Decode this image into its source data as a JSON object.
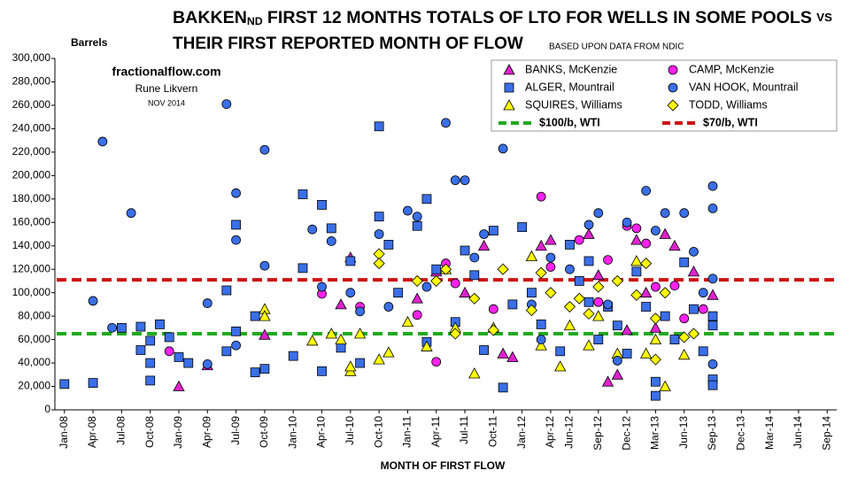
{
  "chart_data": {
    "type": "scatter",
    "title": [
      "BAKKEN",
      "ND",
      "FIRST 12 MONTHS TOTALS OF LTO FOR WELLS IN SOME POOLS",
      "VS",
      "THEIR FIRST REPORTED MONTH OF FLOW"
    ],
    "subtitle": "BASED UPON DATA FROM NDIC",
    "annotations": [
      "fractionalflow.com",
      "Rune Likvern",
      "NOV 2014"
    ],
    "y_label": "Barrels",
    "x_label": "MONTH OF FIRST FLOW",
    "xlim": [
      "Dec-07",
      "Oct-14"
    ],
    "xticks": [
      "Jan-08",
      "Apr-08",
      "Jul-08",
      "Oct-08",
      "Jan-09",
      "Apr-09",
      "Jul-09",
      "Oct-09",
      "Jan-10",
      "Apr-10",
      "Jul-10",
      "Oct-10",
      "Jan-11",
      "Apr-11",
      "Jul-11",
      "Oct-11",
      "Jan-12",
      "Apr-12",
      "Jun-12",
      "Sep-12",
      "Dec-12",
      "Mar-13",
      "Jun-13",
      "Sep-13",
      "Dec-13",
      "Mar-14",
      "Jun-14",
      "Sep-14"
    ],
    "ylim": [
      0,
      300000
    ],
    "yticks": [
      0,
      {
        "value": 20000,
        "label": "20,000"
      },
      {
        "value": 40000,
        "label": "40,000"
      },
      {
        "value": 60000,
        "label": "60,000"
      },
      {
        "value": 80000,
        "label": "80,000"
      },
      {
        "value": 100000,
        "label": "100,000"
      },
      {
        "value": 120000,
        "label": "120,000"
      },
      {
        "value": 140000,
        "label": "140,000"
      },
      {
        "value": 160000,
        "label": "160,000"
      },
      {
        "value": 180000,
        "label": "180,000"
      },
      {
        "value": 200000,
        "label": "200,000"
      },
      {
        "value": 220000,
        "label": "220,000"
      },
      {
        "value": 240000,
        "label": "240,000"
      },
      {
        "value": 260000,
        "label": "260,000"
      },
      {
        "value": 280000,
        "label": "280,000"
      },
      {
        "value": 300000,
        "label": "300,000"
      }
    ],
    "grid": false,
    "legend": "top-right",
    "series": [
      {
        "name": "BANKS, McKenzie",
        "color": "#dd22cc",
        "marker": "triangle",
        "x": [
          "Jan-09",
          "Apr-09",
          "Jul-10",
          "Jun-10",
          "Oct-09",
          "Feb-11",
          "Apr-11",
          "Jul-11",
          "Sep-11",
          "Nov-11",
          "Dec-11",
          "Mar-12",
          "Apr-12",
          "Aug-12",
          "Sep-12",
          "Oct-12",
          "Nov-12",
          "Jan-13",
          "Feb-13",
          "Mar-13",
          "Apr-13",
          "May-13",
          "Jul-13",
          "Sep-13",
          "Dec-12"
        ],
        "values": [
          20000,
          38000,
          130000,
          90000,
          64000,
          95000,
          118000,
          100000,
          140000,
          48000,
          45000,
          140000,
          145000,
          150000,
          115000,
          24000,
          30000,
          145000,
          100000,
          70000,
          150000,
          140000,
          118000,
          98000,
          68000
        ]
      },
      {
        "name": "ALGER, Mountrail",
        "color": "#3a6fe8",
        "marker": "square",
        "x": [
          "Jan-08",
          "Apr-08",
          "Jul-08",
          "Sep-08",
          "Sep-08",
          "Oct-08",
          "Oct-08",
          "Oct-08",
          "Nov-08",
          "Dec-08",
          "Jan-09",
          "Feb-09",
          "Jun-09",
          "Jun-09",
          "Jul-09",
          "Jul-09",
          "Sep-09",
          "Sep-09",
          "Oct-09",
          "Jan-10",
          "Feb-10",
          "Feb-10",
          "Apr-10",
          "Apr-10",
          "May-10",
          "Jun-10",
          "Jul-10",
          "Aug-10",
          "Oct-10",
          "Oct-10",
          "Nov-10",
          "Dec-10",
          "Feb-11",
          "Mar-11",
          "Mar-11",
          "Apr-11",
          "Jun-11",
          "Jul-11",
          "Aug-11",
          "Sep-11",
          "Oct-11",
          "Nov-11",
          "Dec-11",
          "Jan-12",
          "Feb-12",
          "Mar-12",
          "May-12",
          "Jun-12",
          "Jul-12",
          "Aug-12",
          "Aug-12",
          "Sep-12",
          "Oct-12",
          "Nov-12",
          "Dec-12",
          "Jan-13",
          "Feb-13",
          "Mar-13",
          "Mar-13",
          "Apr-13",
          "May-13",
          "Jun-13",
          "Jul-13",
          "Aug-13",
          "Sep-13",
          "Sep-13",
          "Sep-13",
          "Sep-13"
        ],
        "values": [
          22000,
          23000,
          70000,
          71000,
          51000,
          59000,
          40000,
          25000,
          73000,
          62000,
          45000,
          40000,
          50000,
          102000,
          158000,
          67000,
          32000,
          80000,
          35000,
          46000,
          121000,
          184000,
          175000,
          33000,
          155000,
          53000,
          127000,
          40000,
          165000,
          242000,
          141000,
          100000,
          157000,
          180000,
          58000,
          120000,
          75000,
          136000,
          115000,
          51000,
          153000,
          19000,
          90000,
          156000,
          100000,
          73000,
          50000,
          141000,
          110000,
          127000,
          92000,
          60000,
          88000,
          72000,
          48000,
          118000,
          88000,
          24000,
          12000,
          80000,
          60000,
          126000,
          86000,
          50000,
          80000,
          72000,
          26000,
          21000
        ]
      },
      {
        "name": "SQUIRES, Williams",
        "color": "#ffff00",
        "marker": "triangle",
        "x": [
          "Oct-09",
          "Oct-09",
          "Mar-10",
          "May-10",
          "Jun-10",
          "Jul-10",
          "Jul-10",
          "Aug-10",
          "Oct-10",
          "Nov-10",
          "Jan-11",
          "Mar-11",
          "May-11",
          "Jun-11",
          "Aug-11",
          "Oct-11",
          "Feb-12",
          "Mar-12",
          "May-12",
          "Jun-12",
          "Aug-12",
          "Sep-12",
          "Nov-12",
          "Jan-13",
          "Feb-13",
          "Mar-13",
          "Apr-13",
          "Jun-13"
        ],
        "values": [
          86000,
          80000,
          59000,
          65000,
          60000,
          33000,
          37000,
          65000,
          43000,
          49000,
          75000,
          54000,
          120000,
          70000,
          31000,
          70000,
          131000,
          55000,
          37000,
          72000,
          55000,
          80000,
          48000,
          127000,
          48000,
          60000,
          20000,
          47000
        ]
      },
      {
        "name": "CAMP, McKenzie",
        "color": "#ff22ee",
        "marker": "circle",
        "x": [
          "Dec-08",
          "Apr-10",
          "Aug-10",
          "Feb-11",
          "Apr-11",
          "May-11",
          "Jun-11",
          "Oct-11",
          "Mar-12",
          "Apr-12",
          "Jul-12",
          "Oct-12",
          "Dec-12",
          "Jan-13",
          "Feb-13",
          "Mar-13",
          "May-13",
          "Aug-13",
          "Jun-13",
          "Sep-12"
        ],
        "values": [
          50000,
          99000,
          88000,
          81000,
          41000,
          125000,
          108000,
          86000,
          182000,
          122000,
          145000,
          128000,
          157000,
          155000,
          142000,
          105000,
          106000,
          86000,
          78000,
          92000
        ]
      },
      {
        "name": "VAN HOOK, Mountrail",
        "color": "#3a6fe8",
        "marker": "circle",
        "x": [
          "Apr-08",
          "May-08",
          "Aug-08",
          "Jun-08",
          "Apr-09",
          "Apr-09",
          "Jun-09",
          "Jul-09",
          "Jul-09",
          "Jul-09",
          "Oct-09",
          "Oct-09",
          "Mar-10",
          "Apr-10",
          "May-10",
          "Jul-10",
          "Aug-10",
          "Oct-10",
          "Nov-10",
          "Jan-11",
          "Feb-11",
          "Mar-11",
          "May-11",
          "Jun-11",
          "Jul-11",
          "Aug-11",
          "Sep-11",
          "Nov-11",
          "Feb-12",
          "Apr-12",
          "Jun-12",
          "Aug-12",
          "Sep-12",
          "Oct-12",
          "Dec-12",
          "Feb-13",
          "Mar-13",
          "Apr-13",
          "Jun-13",
          "Jul-13",
          "Aug-13",
          "Sep-13",
          "Sep-13",
          "Sep-13",
          "Sep-13",
          "Mar-12",
          "Nov-12"
        ],
        "values": [
          93000,
          229000,
          168000,
          70000,
          39000,
          91000,
          261000,
          185000,
          145000,
          55000,
          222000,
          123000,
          154000,
          105000,
          144000,
          100000,
          84000,
          150000,
          88000,
          170000,
          165000,
          105000,
          245000,
          196000,
          196000,
          130000,
          150000,
          223000,
          90000,
          130000,
          120000,
          158000,
          168000,
          90000,
          160000,
          187000,
          153000,
          168000,
          168000,
          135000,
          100000,
          191000,
          172000,
          112000,
          39000,
          60000,
          42000
        ]
      },
      {
        "name": "TODD, Williams",
        "color": "#ffff00",
        "marker": "diamond",
        "x": [
          "Oct-10",
          "Oct-10",
          "Feb-11",
          "Apr-11",
          "May-11",
          "Jun-11",
          "Aug-11",
          "Oct-11",
          "Nov-11",
          "Feb-12",
          "Mar-12",
          "Apr-12",
          "Jun-12",
          "Jul-12",
          "Aug-12",
          "Sep-12",
          "Nov-12",
          "Jan-13",
          "Feb-13",
          "Mar-13",
          "Mar-13",
          "Apr-13",
          "Jun-13",
          "Jul-13"
        ],
        "values": [
          133000,
          125000,
          110000,
          110000,
          120000,
          65000,
          95000,
          68000,
          120000,
          85000,
          117000,
          100000,
          88000,
          95000,
          82000,
          105000,
          110000,
          98000,
          125000,
          78000,
          43000,
          100000,
          62000,
          65000
        ]
      }
    ],
    "reference_lines": [
      {
        "name": "$100/b, WTI",
        "color": "#22aa22",
        "value": 65000
      },
      {
        "name": "$70/b, WTI",
        "color": "#cc1111",
        "value": 111000
      }
    ]
  }
}
